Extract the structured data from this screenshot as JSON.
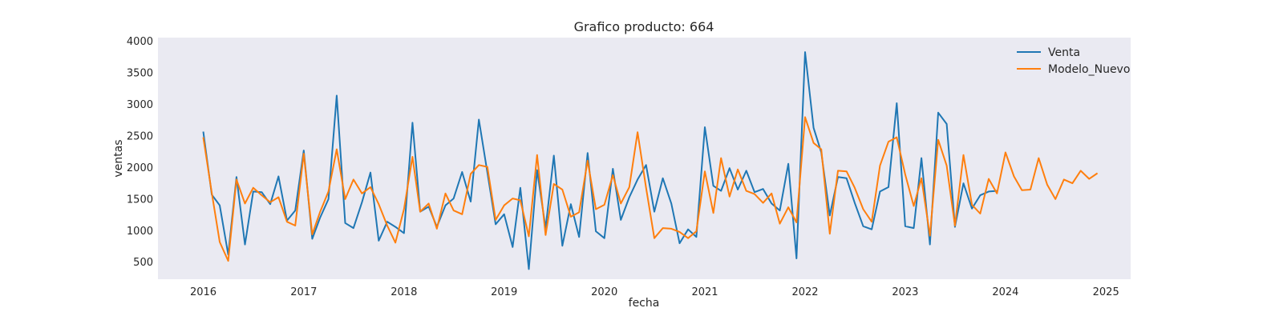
{
  "chart_data": {
    "type": "line",
    "title": "Grafico producto: 664",
    "xlabel": "fecha",
    "ylabel": "ventas",
    "xlim": [
      "2015-07-20",
      "2025-04-01"
    ],
    "ylim": [
      230,
      4060
    ],
    "x_ticks": [
      "2016",
      "2017",
      "2018",
      "2019",
      "2020",
      "2021",
      "2022",
      "2023",
      "2024",
      "2025"
    ],
    "y_ticks": [
      500,
      1000,
      1500,
      2000,
      2500,
      3000,
      3500,
      4000
    ],
    "grid": false,
    "legend": "top-right",
    "colors": {
      "background": "#eaeaf2",
      "venta": "#1f77b4",
      "modelo": "#ff7f0e"
    },
    "start_date": "2016-01-01",
    "series": [
      {
        "name": "Venta",
        "values": [
          2570,
          1570,
          1400,
          620,
          1850,
          780,
          1620,
          1610,
          1420,
          1860,
          1160,
          1320,
          2270,
          870,
          1200,
          1500,
          3140,
          1120,
          1040,
          1450,
          1920,
          840,
          1140,
          1060,
          960,
          2710,
          1300,
          1380,
          1060,
          1400,
          1510,
          1930,
          1460,
          2760,
          1920,
          1100,
          1260,
          740,
          1680,
          390,
          1960,
          1040,
          2190,
          760,
          1420,
          900,
          2230,
          990,
          880,
          1980,
          1170,
          1530,
          1810,
          2040,
          1300,
          1830,
          1430,
          800,
          1020,
          900,
          2640,
          1710,
          1630,
          1990,
          1650,
          1950,
          1610,
          1660,
          1430,
          1320,
          2060,
          560,
          3830,
          2630,
          2240,
          1240,
          1850,
          1830,
          1440,
          1070,
          1020,
          1620,
          1690,
          3020,
          1070,
          1040,
          2150,
          780,
          2870,
          2690,
          1060,
          1750,
          1350,
          1560,
          1620,
          1630
        ]
      },
      {
        "name": "Modelo_Nuevo",
        "values": [
          2480,
          1600,
          820,
          520,
          1810,
          1430,
          1680,
          1560,
          1450,
          1530,
          1140,
          1080,
          2220,
          940,
          1290,
          1620,
          2290,
          1500,
          1810,
          1590,
          1690,
          1420,
          1080,
          810,
          1340,
          2170,
          1300,
          1430,
          1030,
          1590,
          1320,
          1260,
          1900,
          2040,
          2010,
          1170,
          1400,
          1510,
          1480,
          910,
          2200,
          930,
          1740,
          1650,
          1220,
          1290,
          2110,
          1340,
          1410,
          1880,
          1430,
          1690,
          2560,
          1680,
          880,
          1040,
          1030,
          980,
          880,
          990,
          1940,
          1280,
          2150,
          1540,
          1970,
          1630,
          1580,
          1440,
          1590,
          1110,
          1370,
          1130,
          2800,
          2390,
          2290,
          950,
          1950,
          1940,
          1680,
          1340,
          1140,
          2030,
          2410,
          2480,
          1890,
          1390,
          1830,
          920,
          2440,
          2030,
          1080,
          2200,
          1410,
          1270,
          1820,
          1590,
          2240,
          1860,
          1640,
          1650,
          2150,
          1730,
          1500,
          1810,
          1750,
          1950,
          1820,
          1910
        ]
      }
    ]
  }
}
